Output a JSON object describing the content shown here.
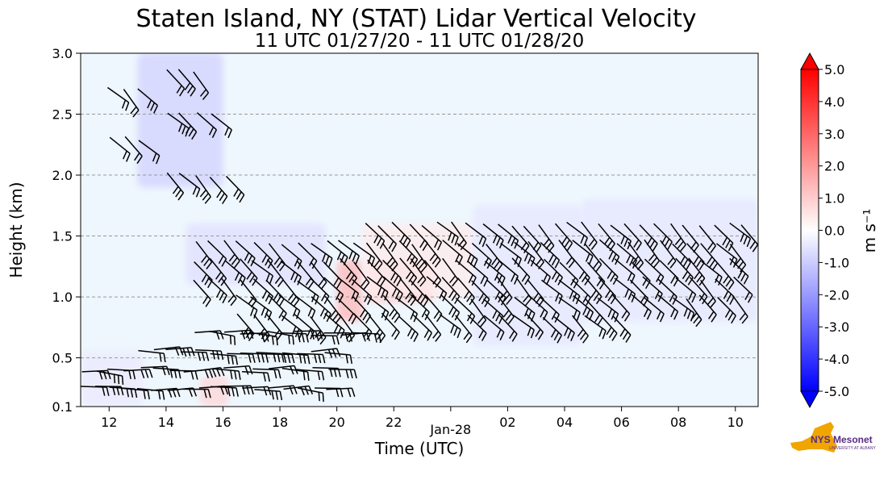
{
  "chart_data": {
    "type": "heatmap",
    "title": "Staten Island, NY (STAT) Lidar Vertical Velocity",
    "subtitle": "11 UTC 01/27/20 - 11 UTC 01/28/20",
    "xlabel": "Time (UTC)",
    "ylabel": "Height (km)",
    "x_tick_labels": [
      "12",
      "14",
      "16",
      "18",
      "20",
      "22",
      "Jan-28",
      "02",
      "04",
      "06",
      "08",
      "10"
    ],
    "x_ticks_hours": [
      12,
      14,
      16,
      18,
      20,
      22,
      24,
      26,
      28,
      30,
      32,
      34
    ],
    "xlim_hours": [
      11,
      34.8
    ],
    "y_tick_labels": [
      "0.1",
      "0.5",
      "1.0",
      "1.5",
      "2.0",
      "2.5",
      "3.0"
    ],
    "y_ticks": [
      0.1,
      0.5,
      1.0,
      1.5,
      2.0,
      2.5,
      3.0
    ],
    "ylim": [
      0.1,
      3.0
    ],
    "grid": "horizontal dashed",
    "background_color": "#eef6fe",
    "colorbar": {
      "label": "m s⁻¹",
      "range": [
        -5.0,
        5.0
      ],
      "tick_labels": [
        "5.0",
        "4.0",
        "3.0",
        "2.0",
        "1.0",
        "0.0",
        "-1.0",
        "-2.0",
        "-3.0",
        "-4.0",
        "-5.0"
      ],
      "tick_values": [
        5,
        4,
        3,
        2,
        1,
        0,
        -1,
        -2,
        -3,
        -4,
        -5
      ],
      "colors": {
        "low": "#0000ff",
        "mid": "#ffffff",
        "high": "#ff0000"
      }
    },
    "velocity_regions": [
      {
        "t0": 13.0,
        "t1": 16.0,
        "h0": 1.9,
        "h1": 3.0,
        "v": -0.9
      },
      {
        "t0": 14.7,
        "t1": 19.6,
        "h0": 1.1,
        "h1": 1.6,
        "v": -0.6
      },
      {
        "t0": 20.0,
        "t1": 20.9,
        "h0": 0.8,
        "h1": 1.3,
        "v": 1.4
      },
      {
        "t0": 21.1,
        "t1": 23.4,
        "h0": 0.95,
        "h1": 1.3,
        "v": 0.9
      },
      {
        "t0": 20.9,
        "t1": 24.8,
        "h0": 1.0,
        "h1": 1.6,
        "v": 0.4
      },
      {
        "t0": 24.8,
        "t1": 28.6,
        "h0": 0.6,
        "h1": 1.75,
        "v": -0.5
      },
      {
        "t0": 28.6,
        "t1": 34.8,
        "h0": 0.8,
        "h1": 1.8,
        "v": -0.5
      },
      {
        "t0": 11.0,
        "t1": 13.2,
        "h0": 0.1,
        "h1": 0.55,
        "v": -0.4
      },
      {
        "t0": 15.2,
        "t1": 16.2,
        "h0": 0.1,
        "h1": 0.35,
        "v": 0.8
      }
    ],
    "wind_barb_rows": [
      {
        "t0": 11.0,
        "t1": 20.0,
        "h": 0.25
      },
      {
        "t0": 11.0,
        "t1": 20.0,
        "h": 0.4
      },
      {
        "t0": 13.0,
        "t1": 20.0,
        "h": 0.55
      },
      {
        "t0": 15.0,
        "t1": 21.0,
        "h": 0.7
      },
      {
        "t0": 16.5,
        "t1": 30.0,
        "h": 0.85
      },
      {
        "t0": 16.5,
        "t1": 34.0,
        "h": 1.0
      },
      {
        "t0": 15.0,
        "t1": 34.0,
        "h": 1.15
      },
      {
        "t0": 15.0,
        "t1": 34.0,
        "h": 1.3
      },
      {
        "t0": 15.0,
        "t1": 34.0,
        "h": 1.45
      },
      {
        "t0": 21.0,
        "t1": 34.5,
        "h": 1.6
      },
      {
        "t0": 14.0,
        "t1": 16.5,
        "h": 2.0
      },
      {
        "t0": 12.0,
        "t1": 13.5,
        "h": 2.3
      },
      {
        "t0": 14.0,
        "t1": 16.0,
        "h": 2.5
      },
      {
        "t0": 12.0,
        "t1": 13.5,
        "h": 2.7
      },
      {
        "t0": 14.0,
        "t1": 15.5,
        "h": 2.85
      }
    ],
    "logo": {
      "text": "NYS Mesonet",
      "tagline": "UNIVERSITY AT ALBANY"
    }
  }
}
